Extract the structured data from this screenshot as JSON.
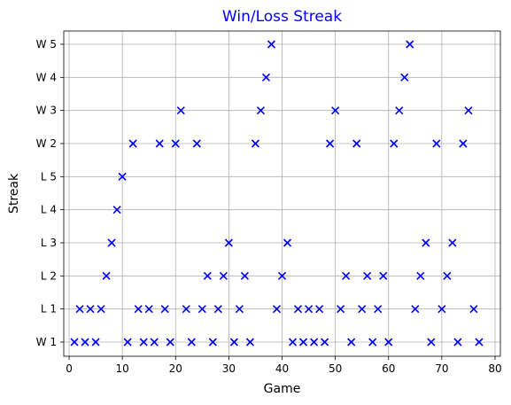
{
  "chart_data": {
    "type": "scatter",
    "title": "Win/Loss Streak",
    "xlabel": "Game",
    "ylabel": "Streak",
    "xlim": [
      -1,
      81
    ],
    "x_ticks": [
      0,
      10,
      20,
      30,
      40,
      50,
      60,
      70,
      80
    ],
    "y_ticks": [
      "W 1",
      "L 1",
      "L 2",
      "L 3",
      "L 4",
      "L 5",
      "W 2",
      "W 3",
      "W 4",
      "W 5"
    ],
    "grid": true,
    "marker": "x",
    "colors": {
      "title": "#0000ff",
      "points": "#0000ff",
      "grid": "#b0b0b0",
      "axes": "#000000"
    },
    "series": [
      {
        "x": [
          1,
          2,
          3,
          4,
          5,
          6,
          7,
          8,
          9,
          10,
          11,
          12,
          13,
          14,
          15,
          16,
          17,
          18,
          19,
          20,
          21,
          22,
          23,
          24,
          25,
          26,
          27,
          28,
          29,
          30,
          31,
          32,
          33,
          34,
          35,
          36,
          37,
          38,
          39,
          40,
          41,
          42,
          43,
          44,
          45,
          46,
          47,
          48,
          49,
          50,
          51,
          52,
          53,
          54,
          55,
          56,
          57,
          58,
          59,
          60,
          61,
          62,
          63,
          64,
          65,
          66,
          67,
          68,
          69,
          70,
          71,
          72,
          73,
          74,
          75,
          76,
          77
        ],
        "y": [
          "W 1",
          "L 1",
          "W 1",
          "L 1",
          "W 1",
          "L 1",
          "L 2",
          "L 3",
          "L 4",
          "L 5",
          "W 1",
          "W 2",
          "L 1",
          "W 1",
          "L 1",
          "W 1",
          "W 2",
          "L 1",
          "W 1",
          "W 2",
          "W 3",
          "L 1",
          "W 1",
          "W 2",
          "L 1",
          "L 2",
          "W 1",
          "L 1",
          "L 2",
          "L 3",
          "W 1",
          "L 1",
          "L 2",
          "W 1",
          "W 2",
          "W 3",
          "W 4",
          "W 5",
          "L 1",
          "L 2",
          "L 3",
          "W 1",
          "L 1",
          "W 1",
          "L 1",
          "W 1",
          "L 1",
          "W 1",
          "W 2",
          "W 3",
          "L 1",
          "L 2",
          "W 1",
          "W 2",
          "L 1",
          "L 2",
          "W 1",
          "L 1",
          "L 2",
          "W 1",
          "W 2",
          "W 3",
          "W 4",
          "W 5",
          "L 1",
          "L 2",
          "L 3",
          "W 1",
          "W 2",
          "L 1",
          "L 2",
          "L 3",
          "W 1",
          "W 2",
          "W 3",
          "L 1",
          "W 1"
        ]
      }
    ]
  }
}
